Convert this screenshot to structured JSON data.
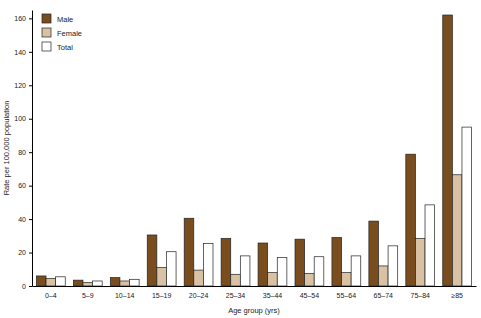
{
  "chart_data": {
    "type": "bar",
    "x_label": "Age group (yrs)",
    "y_label": "Rate per 100,000 population",
    "categories": [
      "0–4",
      "5–9",
      "10–14",
      "15–19",
      "20–24",
      "25–34",
      "35–44",
      "45–54",
      "55–64",
      "65–74",
      "75–84",
      "≥85"
    ],
    "series": [
      {
        "name": "Male",
        "color": "#7a4d1f",
        "values": [
          6,
          3.5,
          5,
          30.5,
          40.5,
          28.5,
          25.7,
          28,
          29,
          38.8,
          78.8,
          162
        ]
      },
      {
        "name": "Female",
        "color": "#d8c2a3",
        "values": [
          4.5,
          2,
          3,
          11,
          9.5,
          7,
          8,
          7.5,
          8,
          12,
          28.5,
          66.5
        ]
      },
      {
        "name": "Total",
        "color": "#ffffff",
        "values": [
          5.5,
          3,
          4,
          20.5,
          25.5,
          18,
          17,
          17.5,
          18,
          24,
          48.5,
          95
        ]
      }
    ],
    "ylim": [
      0,
      165
    ],
    "yticks": [
      0,
      20,
      40,
      60,
      80,
      100,
      120,
      140,
      160
    ],
    "grid": false,
    "legend": "top-left"
  }
}
